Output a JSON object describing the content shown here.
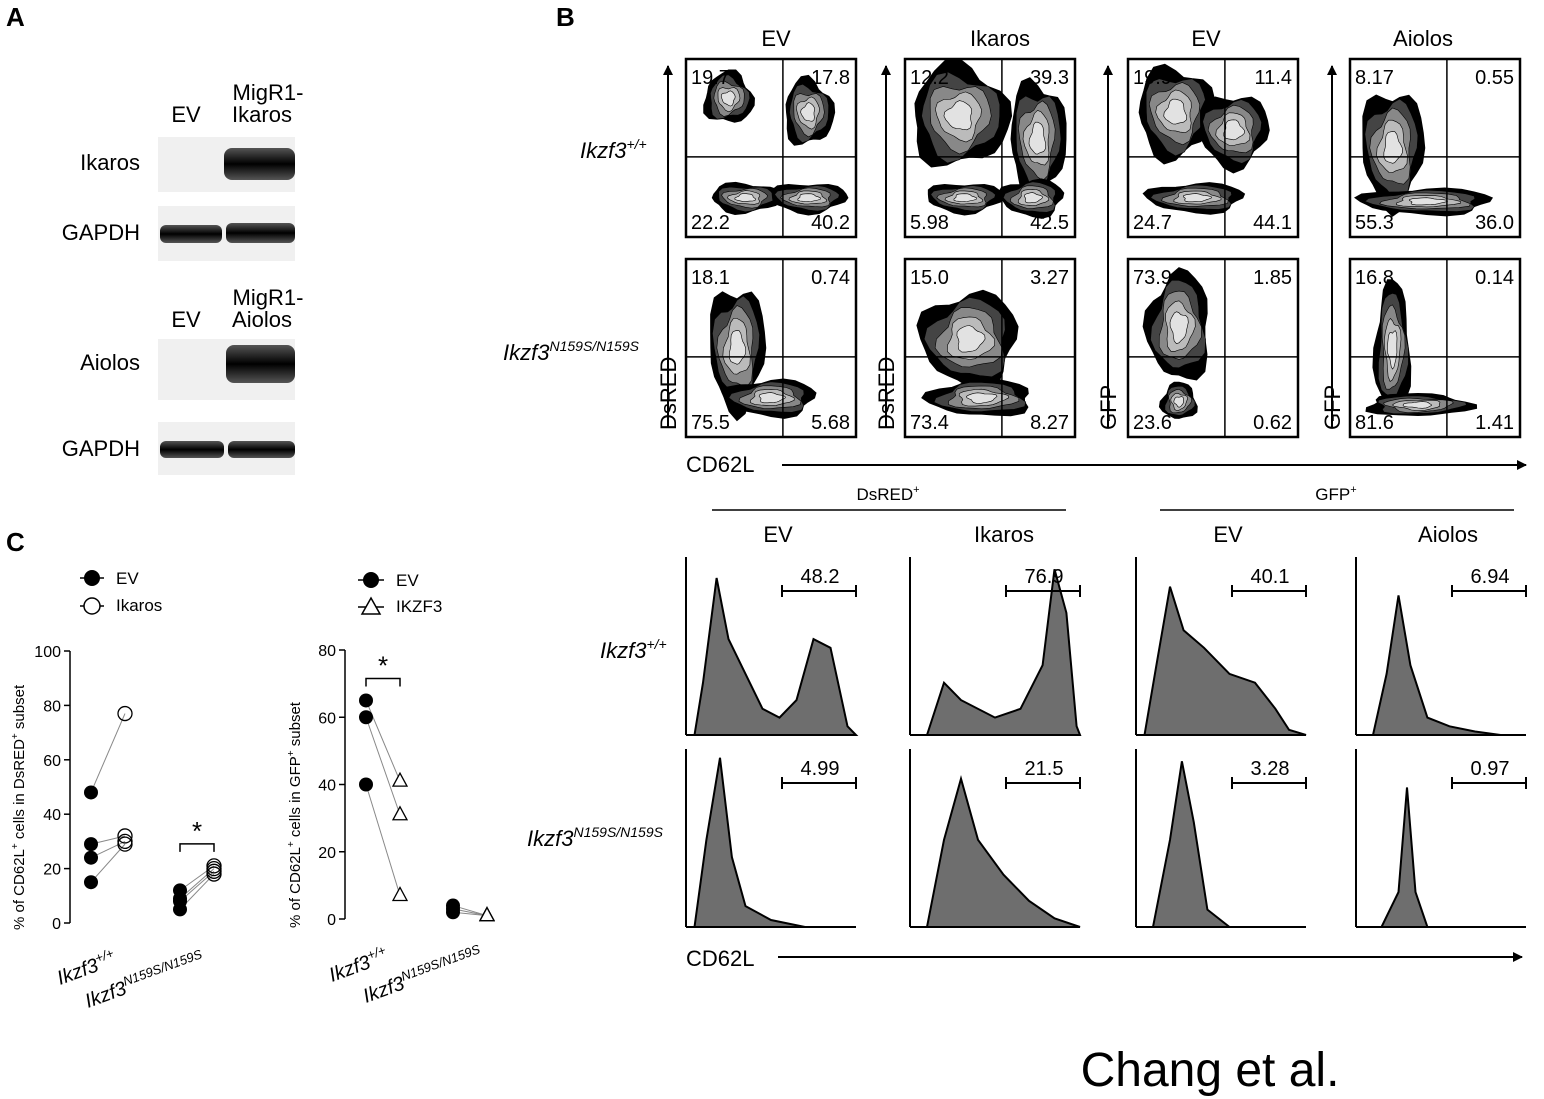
{
  "panel_letters": [
    "A",
    "B",
    "C"
  ],
  "panelA": {
    "blots": [
      {
        "col1": "EV",
        "col2_line1": "MigR1-",
        "col2_line2": "Ikaros",
        "rows": [
          "Ikaros",
          "GAPDH"
        ]
      },
      {
        "col1": "EV",
        "col2_line1": "MigR1-",
        "col2_line2": "Aiolos",
        "rows": [
          "Aiolos",
          "GAPDH"
        ]
      }
    ]
  },
  "panelB": {
    "columns": [
      "EV",
      "Ikaros",
      "EV",
      "Aiolos"
    ],
    "rows": [
      {
        "base": "Ikzf3",
        "sup": "+/+"
      },
      {
        "base": "Ikzf3",
        "sup": "N159S/N159S"
      }
    ],
    "y_axis_labels": [
      "DsRED",
      "DsRED",
      "GFP",
      "GFP"
    ],
    "x_axis_label": "CD62L",
    "quadrants": [
      [
        {
          "ul": "19.7",
          "ur": "17.8",
          "ll": "22.2",
          "lr": "40.2"
        },
        {
          "ul": "12.2",
          "ur": "39.3",
          "ll": "5.98",
          "lr": "42.5"
        },
        {
          "ul": "19.9",
          "ur": "11.4",
          "ll": "24.7",
          "lr": "44.1"
        },
        {
          "ul": "8.17",
          "ur": "0.55",
          "ll": "55.3",
          "lr": "36.0"
        }
      ],
      [
        {
          "ul": "18.1",
          "ur": "0.74",
          "ll": "75.5",
          "lr": "5.68"
        },
        {
          "ul": "15.0",
          "ur": "3.27",
          "ll": "73.4",
          "lr": "8.27"
        },
        {
          "ul": "73.9",
          "ur": "1.85",
          "ll": "23.6",
          "lr": "0.62"
        },
        {
          "ul": "16.8",
          "ur": "0.14",
          "ll": "81.6",
          "lr": "1.41"
        }
      ]
    ],
    "histograms": {
      "group_labels": [
        {
          "base": "DsRED",
          "sup": "+"
        },
        {
          "base": "GFP",
          "sup": "+"
        }
      ],
      "columns": [
        "EV",
        "Ikaros",
        "EV",
        "Aiolos"
      ],
      "rows": [
        {
          "base": "Ikzf3",
          "sup": "+/+"
        },
        {
          "base": "Ikzf3",
          "sup": "N159S/N159S"
        }
      ],
      "gate_values": [
        [
          "48.2",
          "76.9",
          "40.1",
          "6.94"
        ],
        [
          "4.99",
          "21.5",
          "3.28",
          "0.97"
        ]
      ],
      "x_axis_label": "CD62L"
    }
  },
  "panelC": {
    "chart_data": [
      {
        "type": "scatter",
        "legend": [
          {
            "name": "EV",
            "marker": "filled-circle"
          },
          {
            "name": "Ikaros",
            "marker": "open-circle"
          }
        ],
        "ylabel": {
          "pre": "% of CD62L",
          "sup1": "+",
          "mid": "cells in DsRED",
          "sup2": "+",
          "post": "subset"
        },
        "ylim": [
          0,
          100
        ],
        "yticks": [
          "0",
          "20",
          "40",
          "60",
          "80",
          "100"
        ],
        "groups": [
          {
            "base": "Ikzf3",
            "sup": "+/+",
            "ev": [
              48,
              29,
              24,
              15
            ],
            "treated": [
              77,
              32,
              30,
              29
            ]
          },
          {
            "base": "Ikzf3",
            "sup": "N159S/N159S",
            "ev": [
              12,
              9,
              8,
              5
            ],
            "treated": [
              21,
              20,
              19,
              18
            ]
          }
        ],
        "significance": [
          {
            "group": 1,
            "label": "*"
          }
        ]
      },
      {
        "type": "scatter",
        "legend": [
          {
            "name": "EV",
            "marker": "filled-circle"
          },
          {
            "name": "IKZF3",
            "marker": "open-triangle"
          }
        ],
        "ylabel": {
          "pre": "% of CD62L",
          "sup1": "+",
          "mid": "cells in GFP",
          "sup2": "+",
          "post": "subset"
        },
        "ylim": [
          0,
          80
        ],
        "yticks": [
          "0",
          "20",
          "40",
          "60",
          "80"
        ],
        "groups": [
          {
            "base": "Ikzf3",
            "sup": "+/+",
            "ev": [
              65,
              60,
              40
            ],
            "treated": [
              41,
              31,
              7
            ]
          },
          {
            "base": "Ikzf3",
            "sup": "N159S/N159S",
            "ev": [
              4,
              3,
              2
            ],
            "treated": [
              1,
              1,
              1
            ]
          }
        ],
        "significance": [
          {
            "group": 0,
            "label": "*"
          }
        ]
      }
    ]
  },
  "watermark": "Chang et al."
}
